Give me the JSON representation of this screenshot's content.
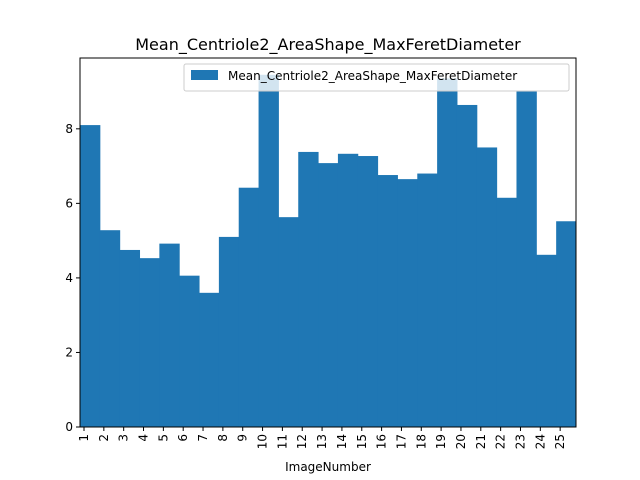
{
  "chart_data": {
    "type": "bar",
    "title": "Mean_Centriole2_AreaShape_MaxFeretDiameter",
    "xlabel": "ImageNumber",
    "ylabel": "",
    "categories": [
      "1",
      "2",
      "3",
      "4",
      "5",
      "6",
      "7",
      "8",
      "9",
      "10",
      "11",
      "12",
      "13",
      "14",
      "15",
      "16",
      "17",
      "18",
      "19",
      "20",
      "21",
      "22",
      "23",
      "24",
      "25"
    ],
    "series": [
      {
        "name": "Mean_Centriole2_AreaShape_MaxFeretDiameter",
        "color": "#1f77b4",
        "values": [
          8.1,
          5.28,
          4.75,
          4.53,
          4.92,
          4.06,
          3.6,
          5.1,
          6.42,
          9.45,
          5.63,
          7.38,
          7.08,
          7.33,
          7.27,
          6.76,
          6.65,
          6.8,
          9.35,
          8.64,
          7.5,
          6.15,
          9.0,
          4.62,
          5.52
        ]
      }
    ],
    "ylim": [
      0,
      9.9
    ],
    "yticks": [
      0,
      2,
      4,
      6,
      8
    ],
    "grid": false,
    "legend_position": "top-right"
  }
}
